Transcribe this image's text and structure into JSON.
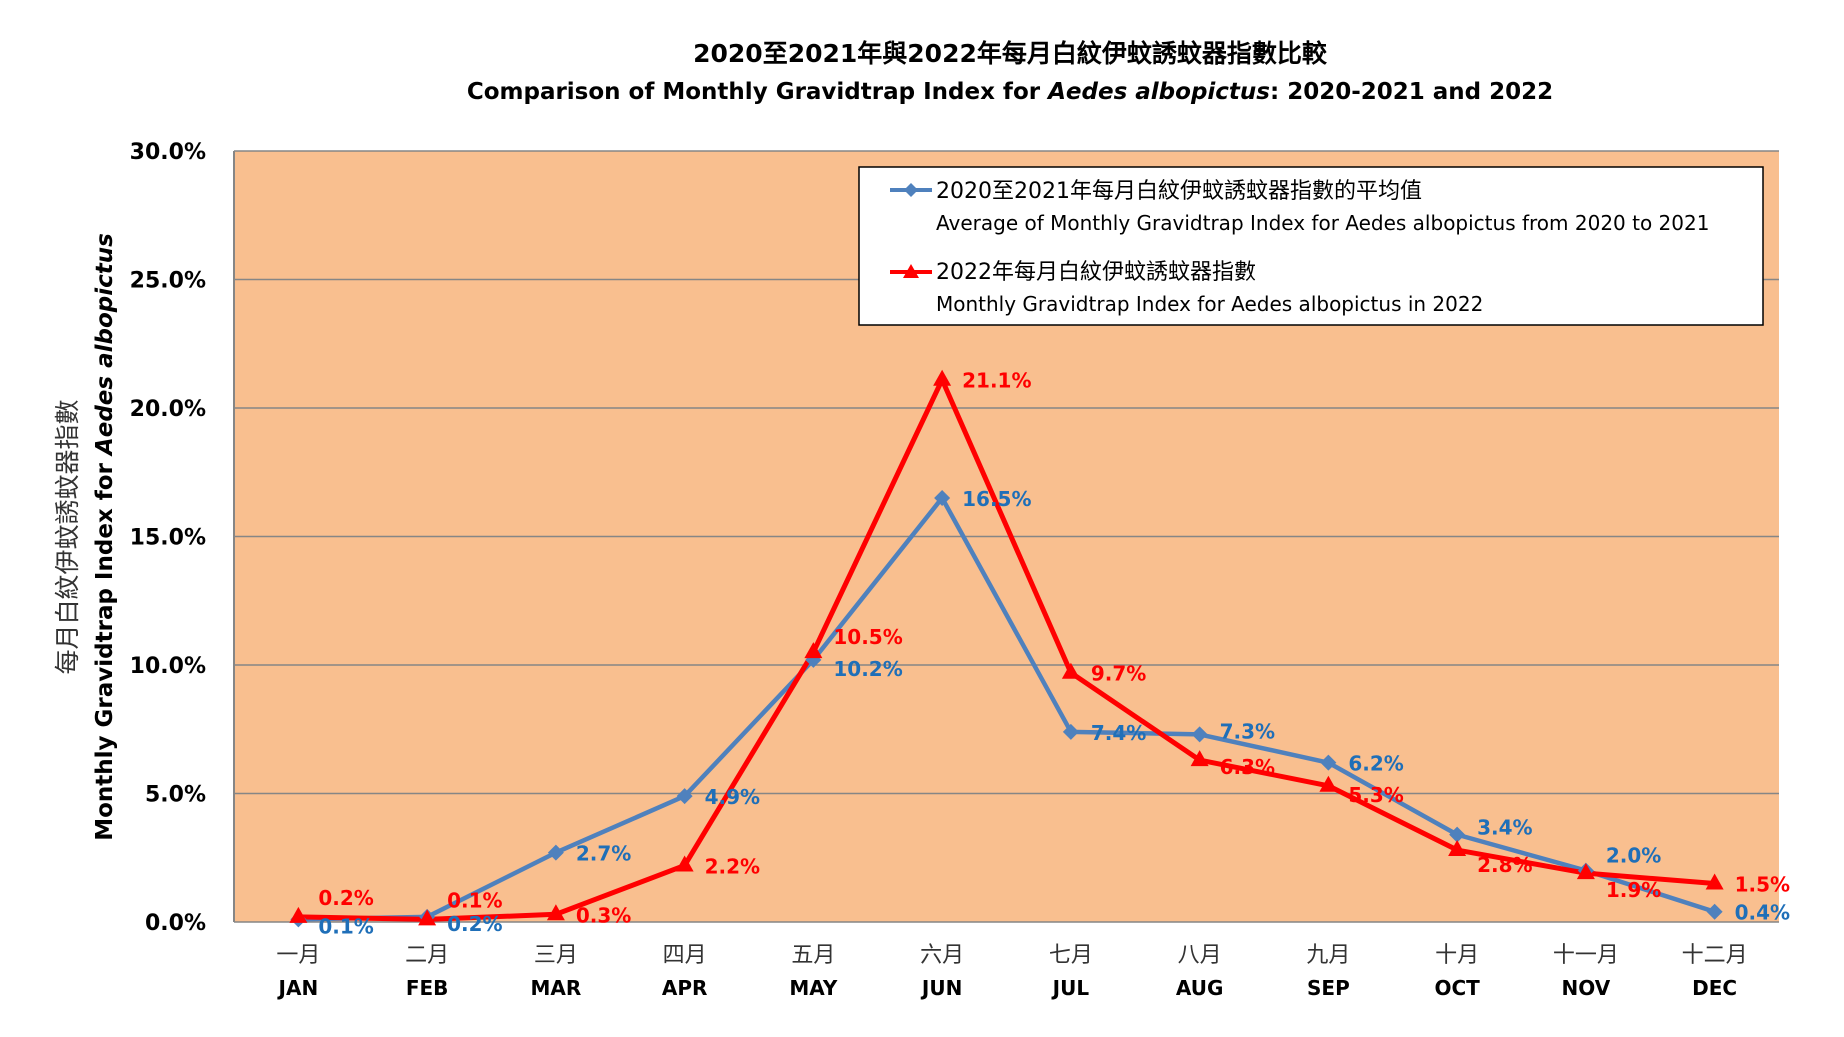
{
  "chart_data": {
    "type": "line",
    "title": "2020至2021年與2022年每月白紋伊蚊誘蚊器指數比較",
    "subtitle_prefix": "Comparison of Monthly Gravidtrap  Index for ",
    "subtitle_italic": "Aedes albopictus",
    "subtitle_suffix": ":  2020-2021 and 2022",
    "ylabel_zh": "每月白紋伊蚊誘蚊器指數",
    "ylabel_en_prefix": "Monthly Gravidtrap Index for ",
    "ylabel_en_italic": "Aedes albopictus",
    "ylim": [
      0,
      30
    ],
    "yticks": [
      "0.0%",
      "5.0%",
      "10.0%",
      "15.0%",
      "20.0%",
      "25.0%",
      "30.0%"
    ],
    "grid": true,
    "legend_placement": "top-right",
    "categories_zh": [
      "一月",
      "二月",
      "三月",
      "四月",
      "五月",
      "六月",
      "七月",
      "八月",
      "九月",
      "十月",
      "十一月",
      "十二月"
    ],
    "categories": [
      "JAN",
      "FEB",
      "MAR",
      "APR",
      "MAY",
      "JUN",
      "JUL",
      "AUG",
      "SEP",
      "OCT",
      "NOV",
      "DEC"
    ],
    "series": [
      {
        "name_zh": "2020至2021年每月白紋伊蚊誘蚊器指數的平均值",
        "name": "Average of Monthly Gravidtrap Index  for Aedes albopictus from 2020 to 2021",
        "color": "#4F81BD",
        "label_color": "#1F6FB8",
        "marker": "diamond",
        "values": [
          0.1,
          0.2,
          2.7,
          4.9,
          10.2,
          16.5,
          7.4,
          7.3,
          6.2,
          3.4,
          2.0,
          0.4
        ]
      },
      {
        "name_zh": "2022年每月白紋伊蚊誘蚊器指數",
        "name": "Monthly Gravidtrap Index for Aedes albopictus in 2022",
        "color": "#FF0000",
        "label_color": "#FF0000",
        "marker": "triangle",
        "values": [
          0.2,
          0.1,
          0.3,
          2.2,
          10.5,
          21.1,
          9.7,
          6.3,
          5.3,
          2.8,
          1.9,
          1.5
        ]
      }
    ],
    "plot_bg": "#F9BF8F"
  }
}
